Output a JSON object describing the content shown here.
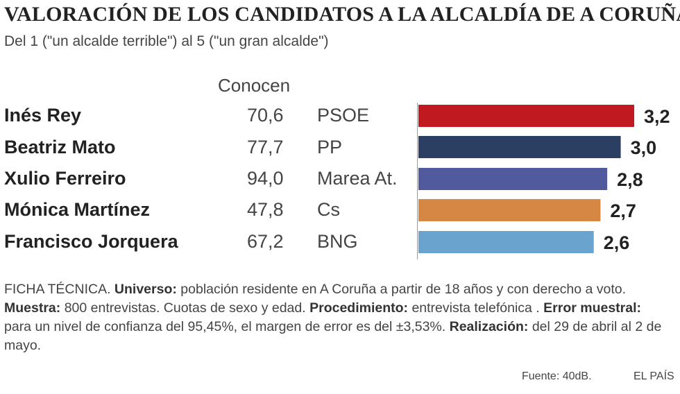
{
  "title": "VALORACIÓN DE LOS CANDIDATOS A LA ALCALDÍA DE A CORUÑA",
  "subtitle": "Del 1 (\"un alcalde terrible\") al 5 (\"un gran alcalde\")",
  "column_header": "Conocen",
  "chart_data": {
    "type": "bar",
    "orientation": "horizontal",
    "title": "VALORACIÓN DE LOS CANDIDATOS A LA ALCALDÍA DE A CORUÑA",
    "subtitle": "Del 1 (\"un alcalde terrible\") al 5 (\"un gran alcalde\")",
    "categories": [
      "Inés Rey",
      "Beatriz Mato",
      "Xulio Ferreiro",
      "Mónica Martínez",
      "Francisco Jorquera"
    ],
    "values": [
      3.2,
      3.0,
      2.8,
      2.7,
      2.6
    ],
    "value_labels": [
      "3,2",
      "3,0",
      "2,8",
      "2,7",
      "2,6"
    ],
    "conocen": [
      "70,6",
      "77,7",
      "94,0",
      "47,8",
      "67,2"
    ],
    "parties": [
      "PSOE",
      "PP",
      "Marea At.",
      "Cs",
      "BNG"
    ],
    "colors": [
      "#c0191f",
      "#2b3f62",
      "#525a9e",
      "#d68744",
      "#6aa3ce"
    ],
    "xlim": [
      0,
      3.2
    ]
  },
  "footer": {
    "ficha": "FICHA TÉCNICA. ",
    "universo_label": "Universo:",
    "universo": " población residente en A Coruña a partir de 18 años y con derecho a voto. ",
    "muestra_label": "Muestra:",
    "muestra": " 800 entrevistas. Cuotas de sexo y edad. ",
    "procedimiento_label": "Procedimiento:",
    "procedimiento": " entrevista telefónica . ",
    "error_label": "Error muestral:",
    "error": " para un nivel de confianza del 95,45%, el margen de error es del ±3,53%. ",
    "realizacion_label": "Realización:",
    "realizacion": " del 29 de abril al 2 de mayo."
  },
  "source": "Fuente: 40dB.",
  "brand": "EL PAÍS"
}
